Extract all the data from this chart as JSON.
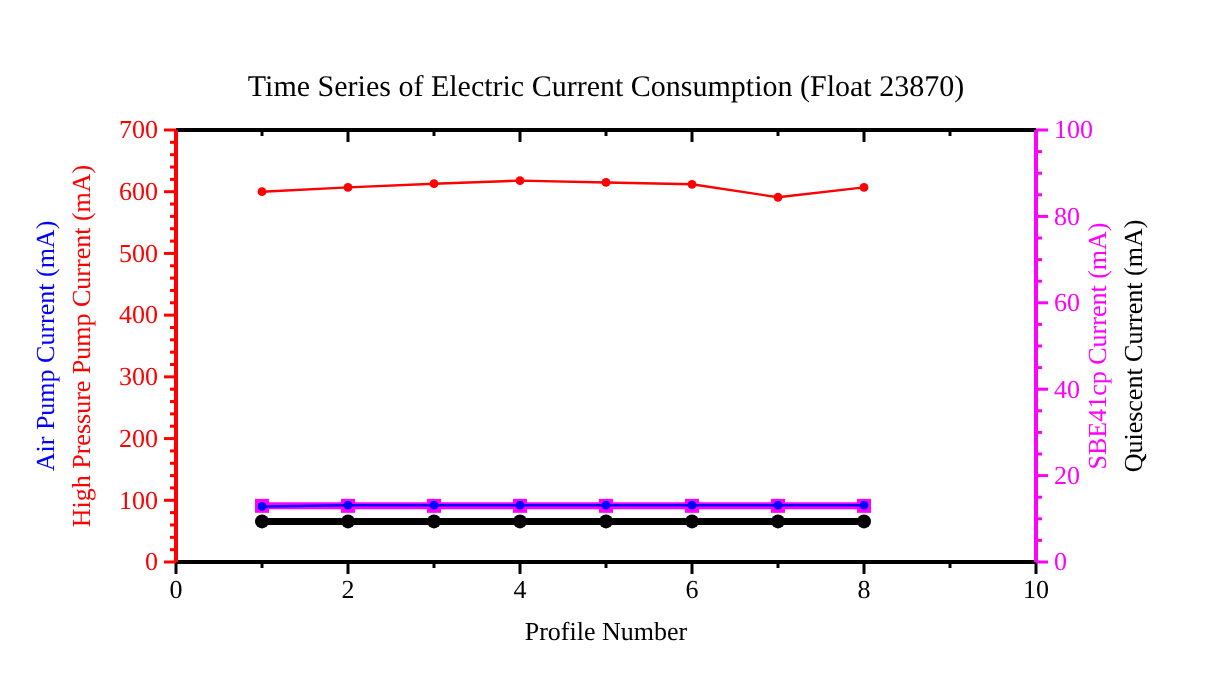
{
  "chart_data": {
    "type": "line",
    "title": "Time Series of Electric Current Consumption (Float 23870)",
    "xlabel": "Profile Number",
    "x": [
      1,
      2,
      3,
      4,
      5,
      6,
      7,
      8
    ],
    "series": [
      {
        "name": "Air Pump Current (mA)",
        "color": "#0000ff",
        "values": [
          90,
          92,
          92,
          92,
          92,
          92,
          92,
          92
        ],
        "marker": "circle"
      },
      {
        "name": "High Pressure Pump Current (mA)",
        "color": "#ff0000",
        "values": [
          600,
          607,
          613,
          618,
          615,
          612,
          591,
          607
        ],
        "marker": "circle"
      },
      {
        "name": "SBE41cp Current (mA)",
        "color": "#ff00ff",
        "values": [
          13,
          13,
          13,
          13,
          13,
          13,
          13,
          13
        ],
        "axis": "y2",
        "marker": "square"
      },
      {
        "name": "Quiescent Current (mA)",
        "color": "#000000",
        "values": [
          9.4,
          9.4,
          9.4,
          9.4,
          9.4,
          9.4,
          9.4,
          9.4
        ],
        "axis": "y2",
        "marker": "circle"
      }
    ],
    "xlim": [
      0,
      10
    ],
    "xticks": [
      0,
      {
        "value": 1,
        "label": null
      },
      2,
      {
        "value": 3,
        "label": null
      },
      4,
      {
        "value": 5,
        "label": null
      },
      6,
      {
        "value": 7,
        "label": null
      },
      8,
      {
        "value": 9,
        "label": null
      },
      10
    ],
    "ylim": [
      0,
      700
    ],
    "yticks": [
      0,
      {
        "value": 20,
        "label": null
      },
      {
        "value": 40,
        "label": null
      },
      {
        "value": 60,
        "label": null
      },
      {
        "value": 80,
        "label": null
      },
      100,
      {
        "value": 120,
        "label": null
      },
      {
        "value": 140,
        "label": null
      },
      {
        "value": 160,
        "label": null
      },
      {
        "value": 180,
        "label": null
      },
      200,
      {
        "value": 220,
        "label": null
      },
      {
        "value": 240,
        "label": null
      },
      {
        "value": 260,
        "label": null
      },
      {
        "value": 280,
        "label": null
      },
      300,
      {
        "value": 320,
        "label": null
      },
      {
        "value": 340,
        "label": null
      },
      {
        "value": 360,
        "label": null
      },
      {
        "value": 380,
        "label": null
      },
      400,
      {
        "value": 420,
        "label": null
      },
      {
        "value": 440,
        "label": null
      },
      {
        "value": 460,
        "label": null
      },
      {
        "value": 480,
        "label": null
      },
      500,
      {
        "value": 520,
        "label": null
      },
      {
        "value": 540,
        "label": null
      },
      {
        "value": 560,
        "label": null
      },
      {
        "value": 580,
        "label": null
      },
      600,
      {
        "value": 620,
        "label": null
      },
      {
        "value": 640,
        "label": null
      },
      {
        "value": 660,
        "label": null
      },
      {
        "value": 680,
        "label": null
      },
      700
    ],
    "y2lim": [
      0,
      100
    ],
    "y2ticks": [
      0,
      {
        "value": 5,
        "label": null
      },
      {
        "value": 10,
        "label": null
      },
      {
        "value": 15,
        "label": null
      },
      20,
      {
        "value": 25,
        "label": null
      },
      {
        "value": 30,
        "label": null
      },
      {
        "value": 35,
        "label": null
      },
      40,
      {
        "value": 45,
        "label": null
      },
      {
        "value": 50,
        "label": null
      },
      {
        "value": 55,
        "label": null
      },
      60,
      {
        "value": 65,
        "label": null
      },
      {
        "value": 70,
        "label": null
      },
      {
        "value": 75,
        "label": null
      },
      80,
      {
        "value": 85,
        "label": null
      },
      {
        "value": 90,
        "label": null
      },
      {
        "value": 95,
        "label": null
      },
      100
    ]
  }
}
